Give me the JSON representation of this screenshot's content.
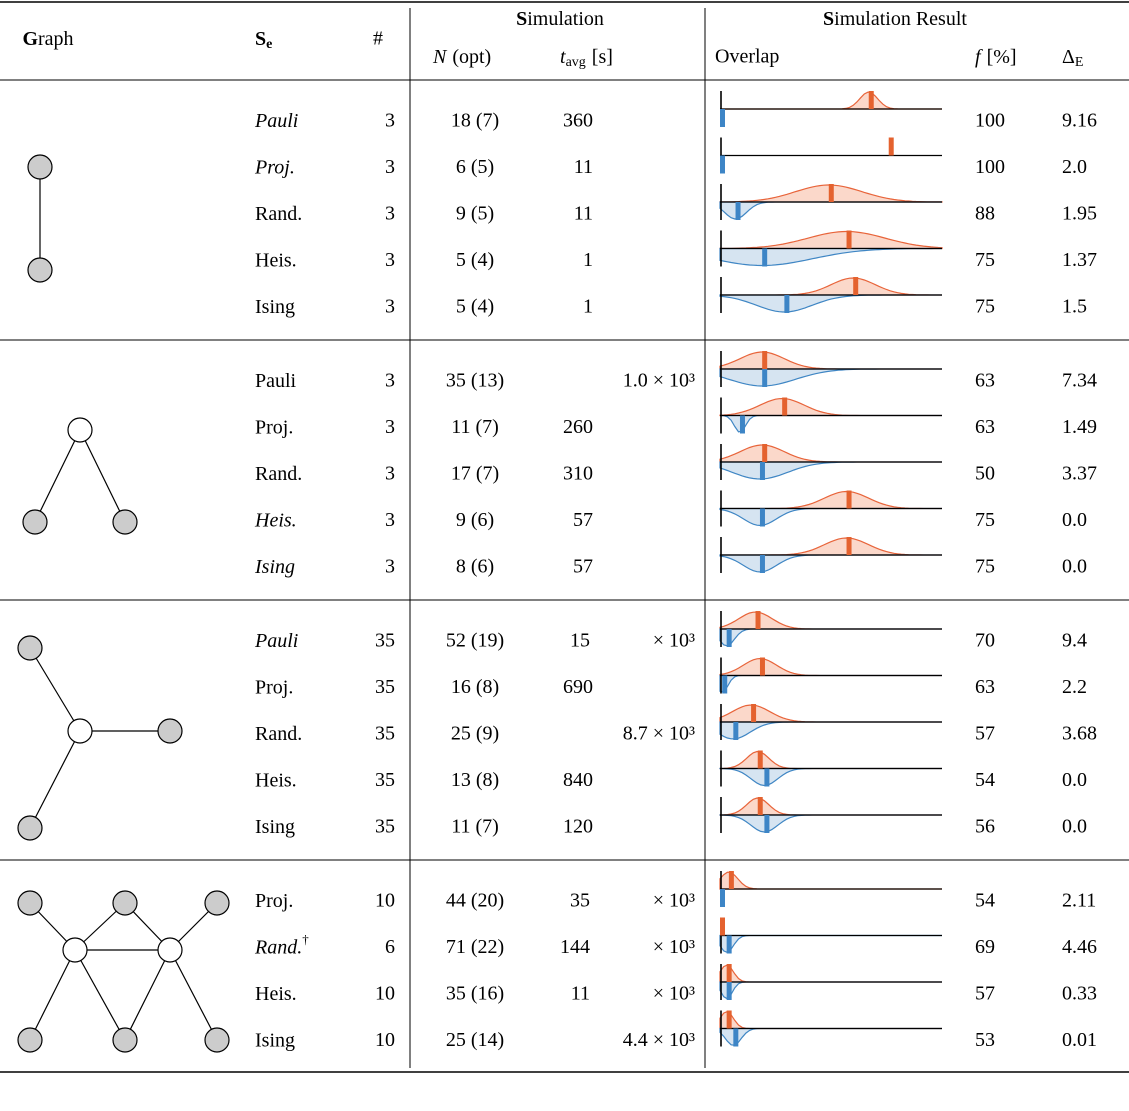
{
  "header": {
    "graph": "Graph",
    "se": {
      "main": "S",
      "sub": "e"
    },
    "count": "#",
    "simulation": "Simulation",
    "n": {
      "var": "N",
      "text": "(opt)"
    },
    "t": {
      "var": "t",
      "sub": "avg",
      "unit": "[s]"
    },
    "result": "Simulation Result",
    "overlap": "Overlap",
    "f": {
      "var": "f",
      "unit": "[%]"
    },
    "delta": {
      "main": "Δ",
      "sub": "E"
    }
  },
  "groups": [
    {
      "rows": [
        {
          "se": "Pauli",
          "italic": true,
          "count": 3,
          "n": "18 (7)",
          "t": 360,
          "f": 100,
          "delta": "9.16",
          "overlap": {
            "red": [
              0.67,
              0.08
            ],
            "blue": [
              0.0,
              0
            ]
          }
        },
        {
          "se": "Proj.",
          "italic": true,
          "count": 3,
          "n": "6 (5)",
          "t": 11,
          "f": 100,
          "delta": "2.0",
          "overlap": {
            "red": [
              0.76,
              0
            ],
            "blue": [
              0.0,
              0
            ]
          }
        },
        {
          "se": "Rand.",
          "italic": false,
          "count": 3,
          "n": "9 (5)",
          "t": 11,
          "f": 88,
          "delta": "1.95",
          "overlap": {
            "red": [
              0.49,
              0.3
            ],
            "blue": [
              0.07,
              0.1
            ]
          }
        },
        {
          "se": "Heis.",
          "italic": false,
          "count": 3,
          "n": "5 (4)",
          "t": 1,
          "f": 75,
          "delta": "1.37",
          "overlap": {
            "red": [
              0.57,
              0.35
            ],
            "blue": [
              0.19,
              0.45
            ]
          }
        },
        {
          "se": "Ising",
          "italic": false,
          "count": 3,
          "n": "5 (4)",
          "t": 1,
          "f": 75,
          "delta": "1.5",
          "overlap": {
            "red": [
              0.6,
              0.2
            ],
            "blue": [
              0.29,
              0.25
            ]
          }
        }
      ]
    },
    {
      "rows": [
        {
          "se": "Pauli",
          "italic": false,
          "count": 3,
          "n": "35 (13)",
          "t": "1.0 × 10³",
          "f": 63,
          "delta": "7.34",
          "overlap": {
            "red": [
              0.19,
              0.2
            ],
            "blue": [
              0.19,
              0.3
            ]
          }
        },
        {
          "se": "Proj.",
          "italic": false,
          "count": 3,
          "n": "11 (7)",
          "t": 260,
          "f": 63,
          "delta": "1.49",
          "overlap": {
            "red": [
              0.28,
              0.2
            ],
            "blue": [
              0.09,
              0.05
            ]
          }
        },
        {
          "se": "Rand.",
          "italic": false,
          "count": 3,
          "n": "17 (7)",
          "t": 310,
          "f": 50,
          "delta": "3.37",
          "overlap": {
            "red": [
              0.19,
              0.2
            ],
            "blue": [
              0.18,
              0.25
            ]
          }
        },
        {
          "se": "Heis.",
          "italic": true,
          "count": 3,
          "n": "9 (6)",
          "t": 57,
          "f": 75,
          "delta": "0.0",
          "overlap": {
            "red": [
              0.57,
              0.2
            ],
            "blue": [
              0.18,
              0.15
            ]
          }
        },
        {
          "se": "Ising",
          "italic": true,
          "count": 3,
          "n": "8 (6)",
          "t": 57,
          "f": 75,
          "delta": "0.0",
          "overlap": {
            "red": [
              0.57,
              0.2
            ],
            "blue": [
              0.18,
              0.15
            ]
          }
        }
      ]
    },
    {
      "rows": [
        {
          "se": "Pauli",
          "italic": true,
          "count": 35,
          "n": "52 (19)",
          "t": {
            "value": "15",
            "exp": "× 10³"
          },
          "f": 70,
          "delta": "9.4",
          "overlap": {
            "red": [
              0.16,
              0.15
            ],
            "blue": [
              0.03,
              0.07
            ]
          }
        },
        {
          "se": "Proj.",
          "italic": false,
          "count": 35,
          "n": "16 (8)",
          "t": 690,
          "f": 63,
          "delta": "2.2",
          "overlap": {
            "red": [
              0.18,
              0.15
            ],
            "blue": [
              0.01,
              0.05
            ]
          }
        },
        {
          "se": "Rand.",
          "italic": false,
          "count": 35,
          "n": "25 (9)",
          "t": "8.7 × 10³",
          "f": 57,
          "delta": "3.68",
          "overlap": {
            "red": [
              0.14,
              0.17
            ],
            "blue": [
              0.06,
              0.15
            ]
          }
        },
        {
          "se": "Heis.",
          "italic": false,
          "count": 35,
          "n": "13 (8)",
          "t": 840,
          "f": 54,
          "delta": "0.0",
          "overlap": {
            "red": [
              0.17,
              0.1
            ],
            "blue": [
              0.2,
              0.12
            ]
          }
        },
        {
          "se": "Ising",
          "italic": false,
          "count": 35,
          "n": "11 (7)",
          "t": 120,
          "f": 56,
          "delta": "0.0",
          "overlap": {
            "red": [
              0.17,
              0.1
            ],
            "blue": [
              0.2,
              0.12
            ]
          }
        }
      ]
    },
    {
      "rows": [
        {
          "se": "Proj.",
          "italic": false,
          "count": 10,
          "n": "44 (20)",
          "t": {
            "value": "35",
            "exp": "× 10³"
          },
          "f": 54,
          "delta": "2.11",
          "overlap": {
            "red": [
              0.04,
              0.08
            ],
            "blue": [
              0.0,
              0
            ]
          }
        },
        {
          "se": "Rand.",
          "note": "†",
          "italic": true,
          "count": 6,
          "n": "71 (22)",
          "t": {
            "value": "144",
            "exp": "× 10³"
          },
          "f": 69,
          "delta": "4.46",
          "overlap": {
            "red": [
              0.0,
              0
            ],
            "blue": [
              0.03,
              0.06
            ]
          }
        },
        {
          "se": "Heis.",
          "italic": false,
          "count": 10,
          "n": "35 (16)",
          "t": {
            "value": "11",
            "exp": "× 10³"
          },
          "f": 57,
          "delta": "0.33",
          "overlap": {
            "red": [
              0.03,
              0.06
            ],
            "blue": [
              0.03,
              0.05
            ]
          }
        },
        {
          "se": "Ising",
          "italic": false,
          "count": 10,
          "n": "25 (14)",
          "t": "4.4 × 10³",
          "f": 53,
          "delta": "0.01",
          "overlap": {
            "red": [
              0.03,
              0.06
            ],
            "blue": [
              0.06,
              0.07
            ]
          }
        }
      ]
    }
  ]
}
